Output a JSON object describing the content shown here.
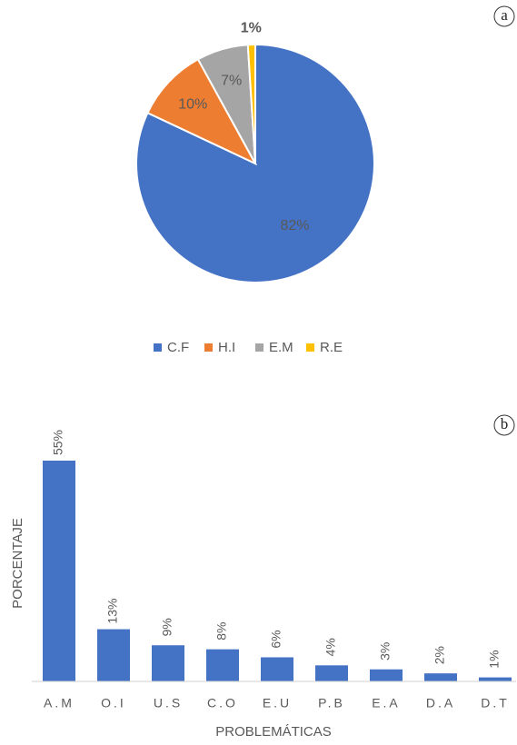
{
  "chart_data": [
    {
      "type": "pie",
      "label": "a",
      "categories": [
        "C.F",
        "H.I",
        "E.M",
        "R.E"
      ],
      "values": [
        82,
        10,
        7,
        1
      ],
      "value_labels": [
        "82%",
        "10%",
        "7%",
        "1%"
      ],
      "colors": [
        "#4472c4",
        "#ed7d31",
        "#a5a5a5",
        "#ffc000"
      ],
      "legend": "bottom"
    },
    {
      "type": "bar",
      "label": "b",
      "categories": [
        "A.M",
        "O.I",
        "U.S",
        "C.O",
        "E.U",
        "P.B",
        "E.A",
        "D.A",
        "D.T"
      ],
      "values": [
        55,
        13,
        9,
        8,
        6,
        4,
        3,
        2,
        1
      ],
      "value_labels": [
        "55%",
        "13%",
        "9%",
        "8%",
        "6%",
        "4%",
        "3%",
        "2%",
        "1%"
      ],
      "color": "#4472c4",
      "xlabel": "PROBLEMÁTICAS",
      "ylabel": "PORCENTAJE",
      "ylim": [
        0,
        55
      ]
    }
  ]
}
